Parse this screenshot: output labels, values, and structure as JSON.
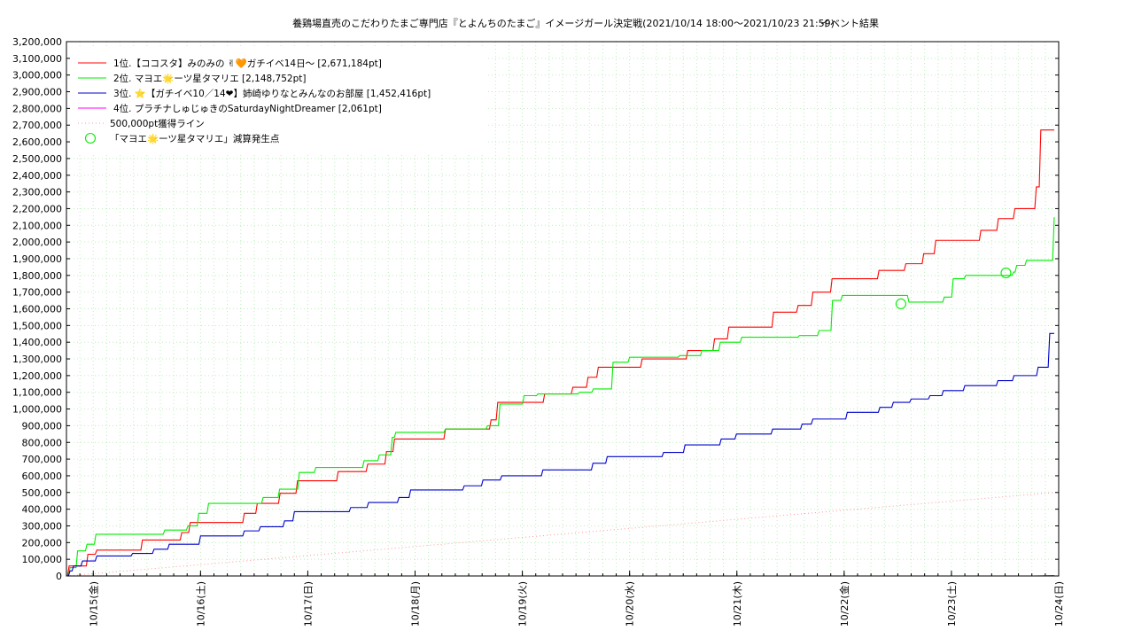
{
  "chart_data": {
    "type": "line",
    "title": "養鶏場直売のこだわりたまご専門店『とよんちのたまご』イメージガール決定戦(2021/10/14 18:00～2021/10/23 21:59)",
    "title_suffix": "イベント結果",
    "xlabel": "",
    "ylabel": "",
    "x_start": "2021-10-14T18:00",
    "x_end": "2021-10-24T00:00",
    "x_ticks": [
      {
        "t": 30,
        "label": "10/15(金)"
      },
      {
        "t": 54,
        "label": "10/16(土)"
      },
      {
        "t": 78,
        "label": "10/17(日)"
      },
      {
        "t": 102,
        "label": "10/18(月)"
      },
      {
        "t": 126,
        "label": "10/19(火)"
      },
      {
        "t": 150,
        "label": "10/20(水)"
      },
      {
        "t": 174,
        "label": "10/21(木)"
      },
      {
        "t": 198,
        "label": "10/22(金)"
      },
      {
        "t": 222,
        "label": "10/23(土)"
      },
      {
        "t": 246,
        "label": "10/24(日)"
      }
    ],
    "x_range_hours": [
      24,
      246
    ],
    "ylim": [
      0,
      3200000
    ],
    "y_ticks": [
      "0",
      "100,000",
      "200,000",
      "300,000",
      "400,000",
      "500,000",
      "600,000",
      "700,000",
      "800,000",
      "900,000",
      "1,000,000",
      "1,100,000",
      "1,200,000",
      "1,300,000",
      "1,400,000",
      "1,500,000",
      "1,600,000",
      "1,700,000",
      "1,800,000",
      "1,900,000",
      "2,000,000",
      "2,100,000",
      "2,200,000",
      "2,300,000",
      "2,400,000",
      "2,500,000",
      "2,600,000",
      "2,700,000",
      "2,800,000",
      "2,900,000",
      "3,000,000",
      "3,100,000",
      "3,200,000"
    ],
    "grid": true,
    "legend_position": "top-left",
    "series": [
      {
        "name": "1位.【ココスタ】みのみの ✌🧡ガチイベ14日〜 [2,671,184pt]",
        "color": "#ff0000",
        "style": "step",
        "x": [
          24,
          24.6,
          27.6,
          28.8,
          30.8,
          36,
          41,
          47,
          49.8,
          51.7,
          60,
          63.8,
          66.7,
          67.6,
          71.8,
          75.7,
          79.1,
          84.8,
          91.4,
          95.6,
          97.4,
          101.4,
          108.8,
          115.8,
          119,
          120.5,
          124,
          131,
          132.6,
          137.3,
          140.7,
          143,
          146,
          152.8,
          156,
          163,
          169,
          172.2,
          175.3,
          182.2,
          187.7,
          191,
          195.3,
          197.9,
          205.8,
          211.8,
          215.8,
          218.5,
          222.8,
          228.6,
          232.5,
          236.2,
          241,
          242,
          245
        ],
        "y": [
          0,
          60000,
          60000,
          130000,
          155000,
          155000,
          215000,
          215000,
          260000,
          320000,
          320000,
          375000,
          435000,
          435000,
          495000,
          570000,
          570000,
          625000,
          670000,
          745000,
          820000,
          820000,
          880000,
          880000,
          935000,
          1040000,
          1040000,
          1090000,
          1090000,
          1130000,
          1190000,
          1250000,
          1250000,
          1300000,
          1300000,
          1350000,
          1420000,
          1490000,
          1490000,
          1580000,
          1620000,
          1700000,
          1780000,
          1780000,
          1830000,
          1870000,
          1930000,
          2010000,
          2010000,
          2070000,
          2140000,
          2200000,
          2330000,
          2671184,
          2671184
        ]
      },
      {
        "name": "2位. マヨエ🌟ーツ星タマリエ [2,148,752pt]",
        "color": "#00ee00",
        "style": "step",
        "x": [
          24,
          24.8,
          26.5,
          28.6,
          30.6,
          31.4,
          46,
          51.2,
          53.6,
          55.8,
          64.4,
          68,
          71.7,
          76.1,
          79.8,
          82.4,
          90.6,
          94,
          96.9,
          97.7,
          99.3,
          105.5,
          108.8,
          116,
          118.2,
          121,
          126.4,
          129.5,
          134,
          138.8,
          141.9,
          146.3,
          150,
          159.5,
          161.2,
          166.2,
          170.3,
          175.1,
          188,
          192.4,
          195.4,
          197.6,
          200.6,
          211.6,
          212.5,
          218.3,
          220.4,
          222.4,
          225.2,
          233.4,
          235.9,
          236.6,
          238.8,
          244,
          245
        ],
        "y": [
          0,
          50000,
          150000,
          190000,
          250000,
          250000,
          275000,
          300000,
          375000,
          435000,
          435000,
          470000,
          520000,
          620000,
          650000,
          650000,
          690000,
          725000,
          830000,
          860000,
          860000,
          860000,
          880000,
          880000,
          900000,
          1030000,
          1080000,
          1090000,
          1090000,
          1100000,
          1120000,
          1280000,
          1310000,
          1310000,
          1320000,
          1350000,
          1400000,
          1430000,
          1440000,
          1470000,
          1650000,
          1680000,
          1680000,
          1680000,
          1640000,
          1640000,
          1670000,
          1780000,
          1800000,
          1800000,
          1820000,
          1860000,
          1890000,
          1890000,
          2148752
        ]
      },
      {
        "name": "3位. ⭐【ガチイベ10／14❤】姉崎ゆりなとみんなのお部屋 [1,452,416pt]",
        "color": "#0000cc",
        "style": "step",
        "x": [
          24,
          24.8,
          25.6,
          27.6,
          30.8,
          35.6,
          38.8,
          43.6,
          47,
          54,
          60,
          63.8,
          67.4,
          72.8,
          75,
          79.8,
          87.6,
          91.6,
          98.4,
          101,
          106,
          113,
          117.2,
          121.4,
          130.6,
          136,
          141.8,
          145,
          157.6,
          162.4,
          167,
          170.5,
          173.9,
          182,
          188.6,
          191,
          198.7,
          206,
          209,
          213,
          217.2,
          220.2,
          225,
          232.4,
          236,
          241.4,
          244,
          245
        ],
        "y": [
          0,
          30000,
          60000,
          90000,
          120000,
          120000,
          135000,
          160000,
          190000,
          240000,
          240000,
          270000,
          295000,
          330000,
          385000,
          385000,
          410000,
          440000,
          470000,
          515000,
          515000,
          540000,
          575000,
          600000,
          635000,
          635000,
          675000,
          715000,
          740000,
          785000,
          785000,
          820000,
          850000,
          880000,
          910000,
          940000,
          980000,
          1010000,
          1040000,
          1060000,
          1080000,
          1110000,
          1140000,
          1170000,
          1200000,
          1250000,
          1452416,
          1452416
        ]
      },
      {
        "name": "4位. プラチナしゅじゅきのSaturdayNightDreamer [2,061pt]",
        "color": "#ff00ff",
        "style": "line",
        "x": [
          24,
          240.5,
          245
        ],
        "y": [
          0,
          0,
          2061
        ]
      },
      {
        "name": "500,000pt獲得ライン",
        "color": "#ff9999",
        "style": "dotted",
        "x": [
          24,
          245
        ],
        "y": [
          0,
          500000
        ]
      }
    ],
    "events": {
      "name": "「マヨエ🌟ーツ星タマリエ」減算発生点",
      "color": "#00ee00",
      "points": [
        {
          "x": 210.7,
          "y": 1630000
        },
        {
          "x": 234.2,
          "y": 1815000
        }
      ]
    },
    "hline": {
      "y": 500000,
      "color": "#ff9999"
    }
  }
}
